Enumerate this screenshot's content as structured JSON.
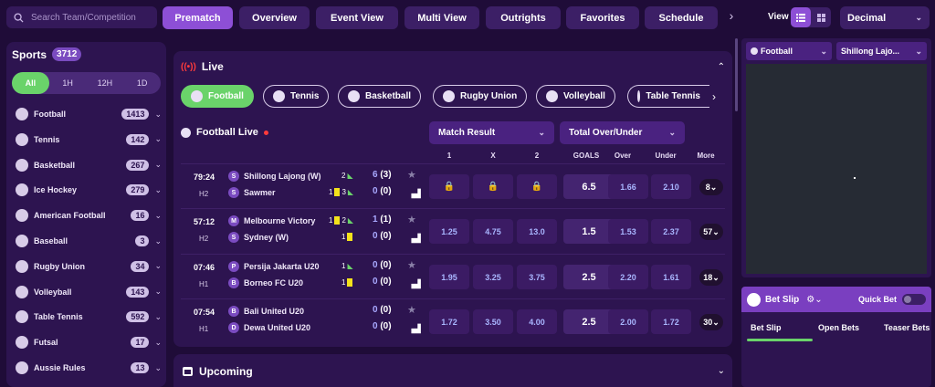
{
  "search": {
    "placeholder": "Search Team/Competition"
  },
  "nav": {
    "tabs": [
      "Prematch",
      "Overview",
      "Event View",
      "Multi View",
      "Outrights",
      "Favorites",
      "Schedule"
    ],
    "active": "Prematch"
  },
  "view": {
    "label": "View",
    "odds_format": "Decimal"
  },
  "sidebar": {
    "title": "Sports",
    "total": "3712",
    "filters": [
      "All",
      "1H",
      "12H",
      "1D"
    ],
    "active_filter": "All",
    "sports": [
      {
        "name": "Football",
        "count": "1413"
      },
      {
        "name": "Tennis",
        "count": "142"
      },
      {
        "name": "Basketball",
        "count": "267"
      },
      {
        "name": "Ice Hockey",
        "count": "279"
      },
      {
        "name": "American Football",
        "count": "16"
      },
      {
        "name": "Baseball",
        "count": "3"
      },
      {
        "name": "Rugby Union",
        "count": "34"
      },
      {
        "name": "Volleyball",
        "count": "143"
      },
      {
        "name": "Table Tennis",
        "count": "592"
      },
      {
        "name": "Futsal",
        "count": "17"
      },
      {
        "name": "Aussie Rules",
        "count": "13"
      }
    ]
  },
  "live": {
    "title": "Live",
    "chips": [
      "Football",
      "Tennis",
      "Basketball",
      "Rugby Union",
      "Volleyball",
      "Table Tennis"
    ],
    "active_chip": "Football",
    "section_title": "Football Live",
    "markets": [
      "Match Result",
      "Total Over/Under"
    ],
    "columns": [
      "1",
      "X",
      "2",
      "GOALS",
      "Over",
      "Under",
      "More"
    ],
    "matches": [
      {
        "time": "79:24",
        "period": "H2",
        "home": {
          "initial": "S",
          "name": "Shillong Lajong (W)",
          "cards": "2",
          "yellow": false,
          "score": "6",
          "ht": "(3)"
        },
        "away": {
          "initial": "S",
          "name": "Sawmer",
          "cards": "1",
          "cards2": "3",
          "yellow": true,
          "score": "0",
          "ht": "(0)"
        },
        "odds": [
          "🔒",
          "🔒",
          "🔒"
        ],
        "goals": "6.5",
        "over": "1.66",
        "under": "2.10",
        "more": "8"
      },
      {
        "time": "57:12",
        "period": "H2",
        "home": {
          "initial": "M",
          "name": "Melbourne Victory",
          "cards": "1",
          "cards2": "2",
          "yellow": true,
          "score": "1",
          "ht": "(1)"
        },
        "away": {
          "initial": "S",
          "name": "Sydney (W)",
          "cards": "1",
          "yellow": true,
          "score": "0",
          "ht": "(0)"
        },
        "odds": [
          "1.25",
          "4.75",
          "13.0"
        ],
        "goals": "1.5",
        "over": "1.53",
        "under": "2.37",
        "more": "57"
      },
      {
        "time": "07:46",
        "period": "H1",
        "home": {
          "initial": "P",
          "name": "Persija Jakarta U20",
          "cards": "1",
          "yellow": false,
          "score": "0",
          "ht": "(0)"
        },
        "away": {
          "initial": "B",
          "name": "Borneo FC U20",
          "cards": "1",
          "yellow": true,
          "score": "0",
          "ht": "(0)"
        },
        "odds": [
          "1.95",
          "3.25",
          "3.75"
        ],
        "goals": "2.5",
        "over": "2.20",
        "under": "1.61",
        "more": "18"
      },
      {
        "time": "07:54",
        "period": "H1",
        "home": {
          "initial": "B",
          "name": "Bali United U20",
          "cards": "",
          "yellow": false,
          "score": "0",
          "ht": "(0)"
        },
        "away": {
          "initial": "D",
          "name": "Dewa United U20",
          "cards": "",
          "yellow": false,
          "score": "0",
          "ht": "(0)"
        },
        "odds": [
          "1.72",
          "3.50",
          "4.00"
        ],
        "goals": "2.5",
        "over": "2.00",
        "under": "1.72",
        "more": "30"
      }
    ]
  },
  "upcoming": {
    "title": "Upcoming"
  },
  "stream": {
    "sport": "Football",
    "match": "Shillong Lajo..."
  },
  "betslip": {
    "title": "Bet Slip",
    "quick_bet": "Quick Bet",
    "tabs": [
      "Bet Slip",
      "Open Bets",
      "Teaser Bets"
    ]
  }
}
